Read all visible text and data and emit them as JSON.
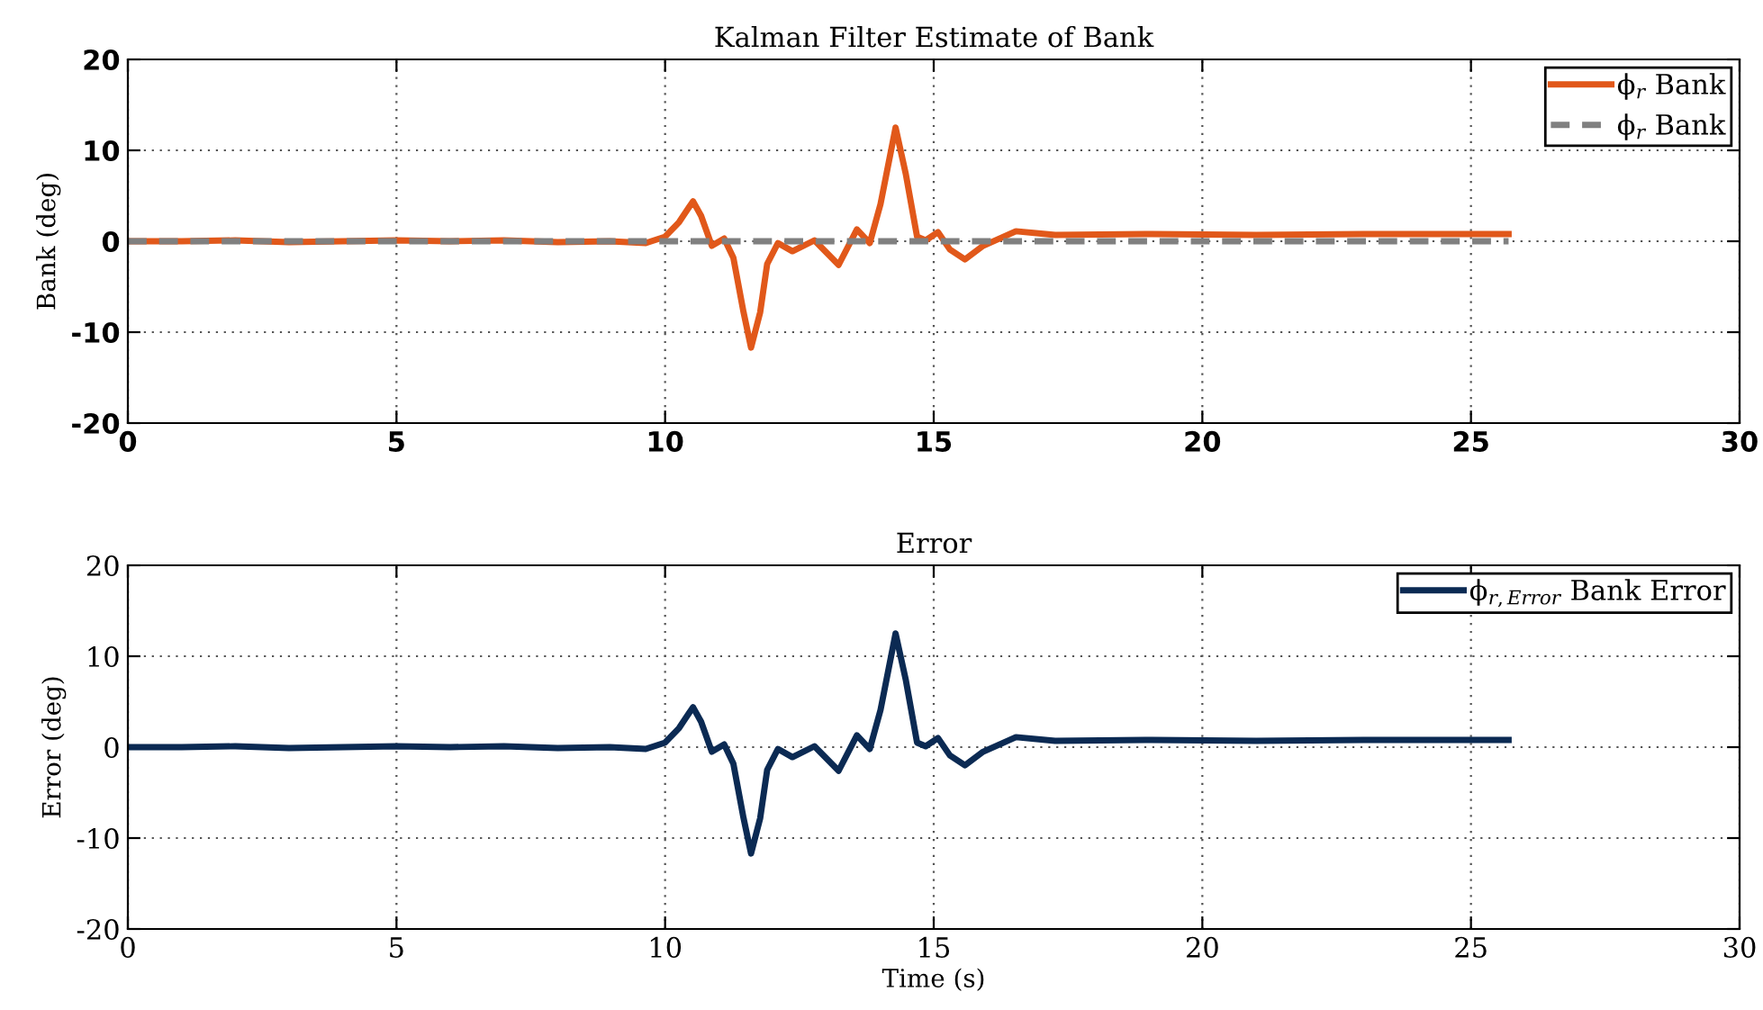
{
  "chart_data": [
    {
      "type": "line",
      "title": "Kalman Filter Estimate of Bank",
      "ylabel": "Bank (deg)",
      "xlim": [
        0,
        30
      ],
      "xticks": [
        0,
        5,
        10,
        15,
        20,
        25,
        30
      ],
      "ylim": [
        -20,
        20
      ],
      "yticks": [
        -20,
        -10,
        0,
        10,
        20
      ],
      "grid": true,
      "legend": "top right",
      "series": [
        {
          "name": "ϕ$_{r}$ Bank",
          "color": "#e1581a",
          "line_style": "solid",
          "x": [
            0,
            1,
            2,
            3,
            4,
            5,
            6,
            7,
            8,
            8.97,
            9.64,
            10,
            10.26,
            10.52,
            10.67,
            10.87,
            11.1,
            11.27,
            11.46,
            11.6,
            11.77,
            11.9,
            12.1,
            12.37,
            12.78,
            13.23,
            13.57,
            13.81,
            14.01,
            14.29,
            14.48,
            14.69,
            14.85,
            15.08,
            15.3,
            15.58,
            15.92,
            16.53,
            17.26,
            19.06,
            21,
            23,
            25.7
          ],
          "values": [
            0,
            0,
            0.1,
            -0.1,
            0,
            0.1,
            0,
            0.1,
            -0.1,
            0,
            -0.2,
            0.5,
            2.1,
            4.4,
            2.8,
            -0.5,
            0.3,
            -1.8,
            -7.8,
            -11.7,
            -7.8,
            -2.5,
            -0.2,
            -1.1,
            0.1,
            -2.6,
            1.3,
            -0.2,
            4.1,
            12.5,
            7.4,
            0.5,
            0.1,
            1.0,
            -0.9,
            -2.0,
            -0.5,
            1.1,
            0.7,
            0.8,
            0.7,
            0.8,
            0.8
          ]
        },
        {
          "name": "ϕ$_{r}$ Bank",
          "color": "#808080",
          "line_style": "dashed",
          "x": [
            0,
            25.7
          ],
          "values": [
            0,
            0
          ]
        }
      ]
    },
    {
      "type": "line",
      "title": "Error",
      "ylabel": "Error (deg)",
      "xlabel": "Time (s)",
      "xlim": [
        0,
        30
      ],
      "xticks": [
        0,
        5,
        10,
        15,
        20,
        25,
        30
      ],
      "ylim": [
        -20,
        20
      ],
      "yticks": [
        -20,
        -10,
        0,
        10,
        20
      ],
      "grid": true,
      "legend": "top right",
      "series": [
        {
          "name": "ϕ$_{r,Error}$ Bank Error",
          "color": "#0b2a53",
          "line_style": "solid",
          "x": [
            0,
            1,
            2,
            3,
            4,
            5,
            6,
            7,
            8,
            8.97,
            9.64,
            10,
            10.26,
            10.52,
            10.67,
            10.87,
            11.1,
            11.27,
            11.46,
            11.6,
            11.77,
            11.9,
            12.1,
            12.37,
            12.78,
            13.23,
            13.57,
            13.81,
            14.01,
            14.29,
            14.48,
            14.69,
            14.85,
            15.08,
            15.3,
            15.58,
            15.92,
            16.53,
            17.26,
            19.06,
            21,
            23,
            25.7
          ],
          "values": [
            0,
            0,
            0.1,
            -0.1,
            0,
            0.1,
            0,
            0.1,
            -0.1,
            0,
            -0.2,
            0.5,
            2.1,
            4.4,
            2.8,
            -0.5,
            0.3,
            -1.8,
            -7.8,
            -11.7,
            -7.8,
            -2.5,
            -0.2,
            -1.1,
            0.1,
            -2.6,
            1.3,
            -0.2,
            4.1,
            12.5,
            7.4,
            0.5,
            0.1,
            1.0,
            -0.9,
            -2.0,
            -0.5,
            1.1,
            0.7,
            0.8,
            0.7,
            0.8,
            0.8
          ]
        }
      ]
    }
  ]
}
